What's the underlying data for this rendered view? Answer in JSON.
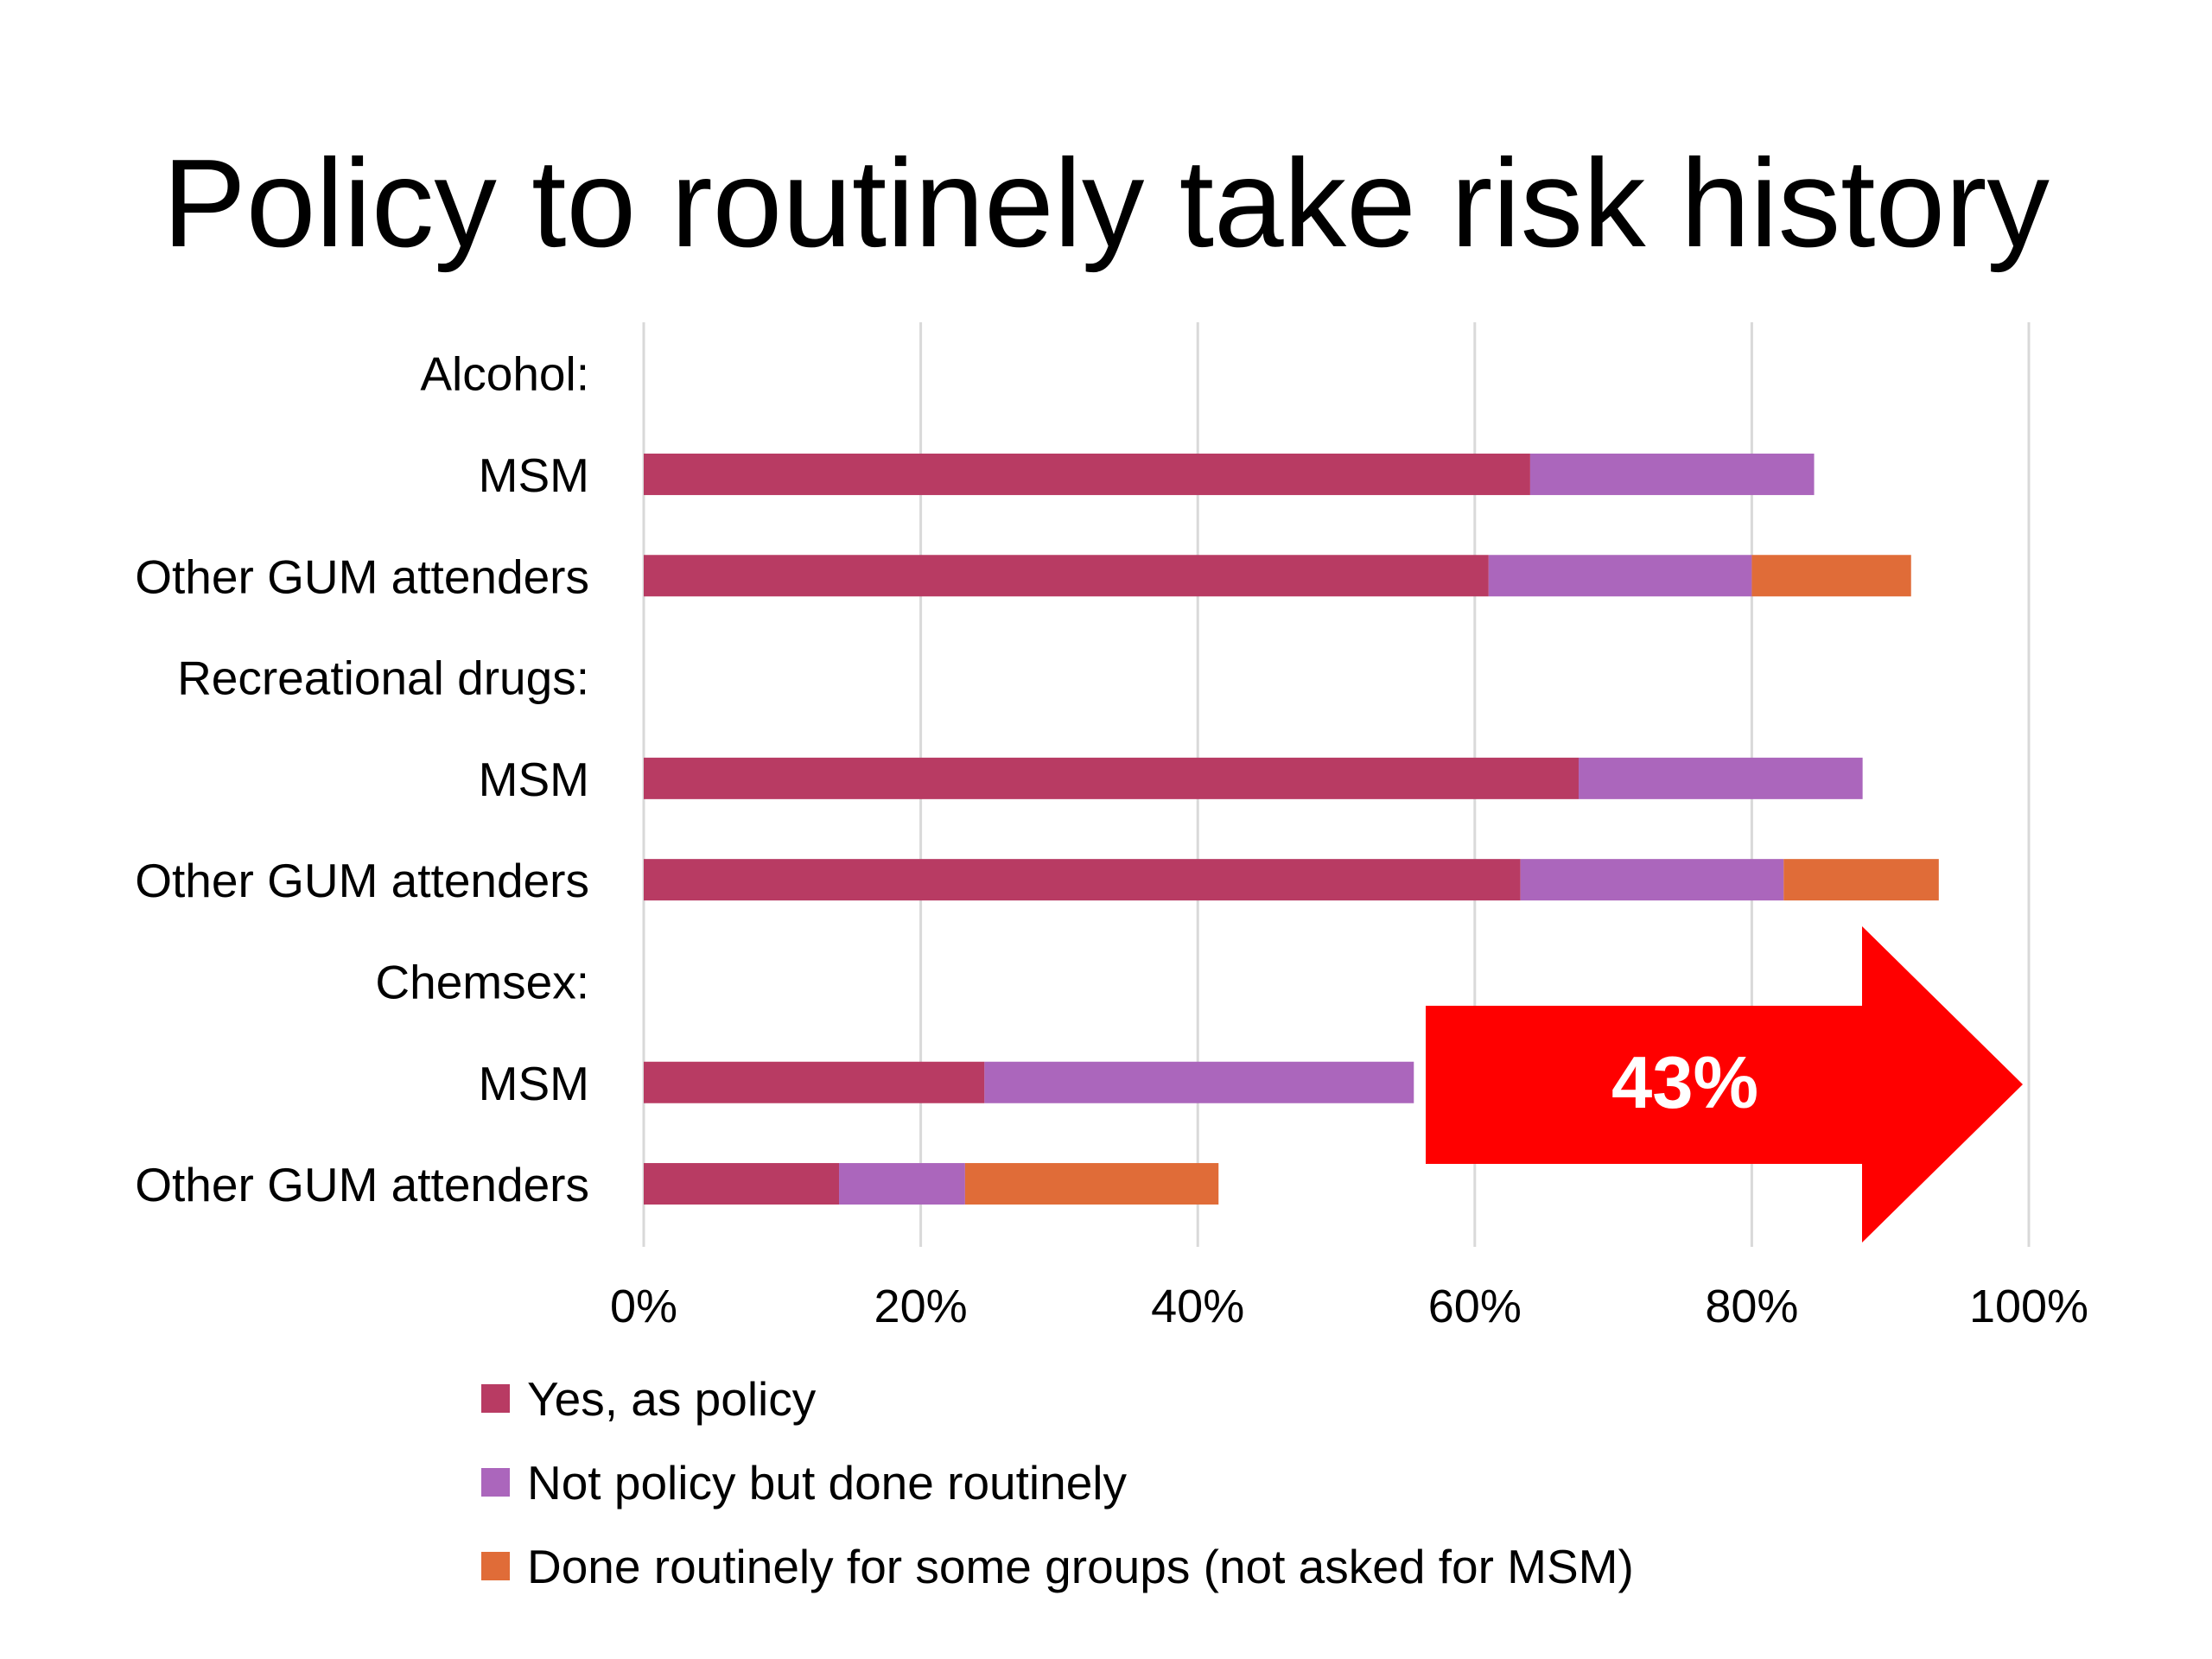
{
  "title": "Policy to routinely take risk history",
  "colors": {
    "yes_policy": "#b83b63",
    "not_policy": "#ab66bc",
    "some_groups": "#e06c38",
    "arrow": "#ff0000",
    "grid": "#d9d9d9"
  },
  "chart_data": {
    "type": "bar",
    "orientation": "horizontal",
    "stacked": true,
    "title": "Policy to routinely take risk history",
    "xlabel": "",
    "ylabel": "",
    "xlim": [
      0,
      100
    ],
    "x_ticks": [
      "0%",
      "20%",
      "40%",
      "60%",
      "80%",
      "100%"
    ],
    "categories": [
      "Alcohol:",
      "MSM",
      "Other GUM attenders",
      "Recreational drugs:",
      "MSM",
      "Other GUM attenders",
      "Chemsex:",
      "MSM",
      "Other GUM attenders"
    ],
    "series": [
      {
        "name": "Yes, as policy",
        "color": "#b83b63",
        "values": [
          0,
          64,
          61,
          0,
          67.5,
          63.3,
          0,
          24.6,
          14.1
        ]
      },
      {
        "name": "Not policy but done routinely",
        "color": "#ab66bc",
        "values": [
          0,
          20.5,
          19,
          0,
          20.5,
          19,
          0,
          31,
          9.1
        ]
      },
      {
        "name": "Done routinely for some groups (not asked for MSM)",
        "color": "#e06c38",
        "values": [
          0,
          0,
          11.5,
          0,
          0,
          11.2,
          0,
          0,
          18.3
        ]
      }
    ],
    "legend_position": "bottom",
    "grid": true,
    "annotation": {
      "text": "43%",
      "shape": "right-arrow",
      "color": "#ff0000"
    }
  }
}
